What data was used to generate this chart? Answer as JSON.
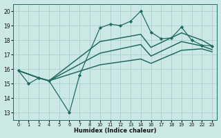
{
  "xlabel": "Humidex (Indice chaleur)",
  "bg_color": "#cce8e4",
  "line_color": "#1e6b5e",
  "grid_color": "#aacfcb",
  "ylim": [
    12.5,
    20.5
  ],
  "yticks": [
    13,
    14,
    15,
    16,
    17,
    18,
    19,
    20
  ],
  "xtick_labels": [
    "0",
    "1",
    "2",
    "4",
    "5",
    "6",
    "7",
    "8",
    "10",
    "11",
    "12",
    "13",
    "14",
    "16",
    "17",
    "18",
    "19",
    "20",
    "22",
    "23"
  ],
  "series": [
    {
      "xi": [
        0,
        1,
        2,
        3,
        5,
        6,
        8,
        9,
        10,
        11,
        12,
        13,
        14,
        15,
        16,
        17,
        18,
        19
      ],
      "y": [
        15.9,
        15.0,
        15.4,
        15.2,
        13.0,
        15.6,
        18.85,
        19.1,
        19.0,
        19.3,
        20.0,
        18.55,
        18.1,
        18.15,
        18.9,
        18.0,
        17.65,
        17.6
      ],
      "marker": "D",
      "markersize": 2.2,
      "linewidth": 0.9
    },
    {
      "xi": [
        0,
        2,
        3,
        8,
        12,
        13,
        16,
        18,
        19
      ],
      "y": [
        15.9,
        15.4,
        15.2,
        17.9,
        18.4,
        17.5,
        18.5,
        18.0,
        17.6
      ],
      "marker": null,
      "linewidth": 1.1
    },
    {
      "xi": [
        0,
        2,
        3,
        8,
        12,
        13,
        16,
        18,
        19
      ],
      "y": [
        15.9,
        15.4,
        15.2,
        17.1,
        17.7,
        16.9,
        17.9,
        17.6,
        17.35
      ],
      "marker": null,
      "linewidth": 1.1
    },
    {
      "xi": [
        0,
        2,
        3,
        8,
        12,
        13,
        16,
        18,
        19
      ],
      "y": [
        15.9,
        15.4,
        15.2,
        16.3,
        16.7,
        16.4,
        17.3,
        17.4,
        17.2
      ],
      "marker": null,
      "linewidth": 1.1
    }
  ]
}
